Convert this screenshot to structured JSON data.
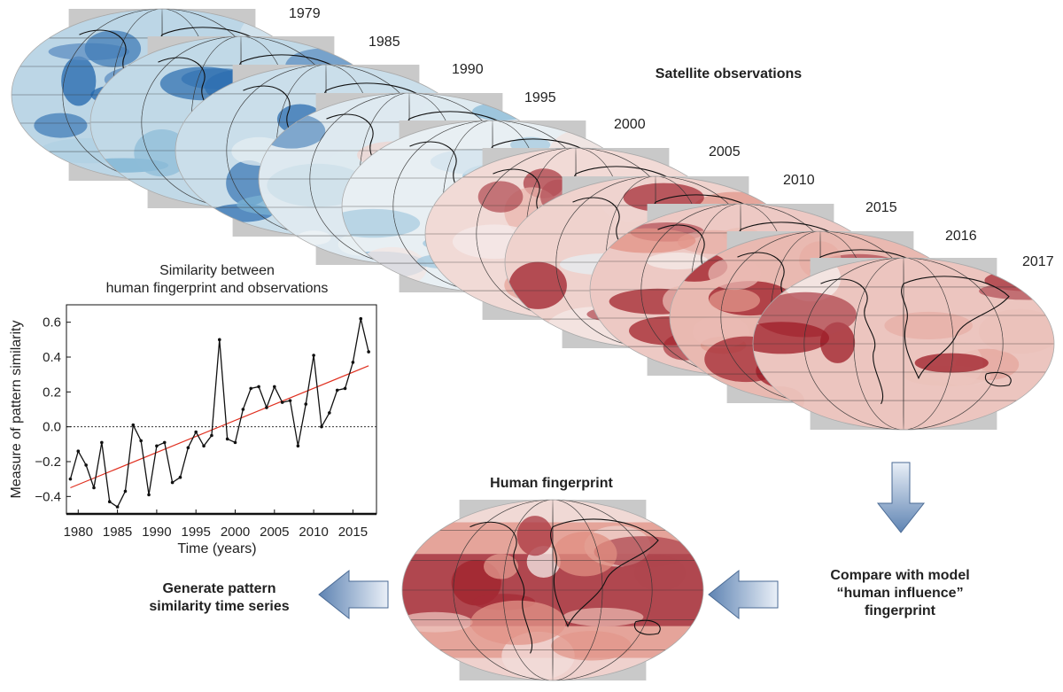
{
  "diagram": {
    "observations_label": "Satellite observations",
    "fingerprint_label": "Human fingerprint",
    "compare_label": [
      "Compare with model",
      "“human influence”",
      "fingerprint"
    ],
    "generate_label": [
      "Generate pattern",
      "similarity time series"
    ],
    "years": [
      "1979",
      "1985",
      "1990",
      "1995",
      "2000",
      "2005",
      "2010",
      "2015",
      "2016",
      "2017"
    ],
    "map_warmth": [
      -0.6,
      -0.55,
      -0.45,
      -0.25,
      -0.15,
      0.35,
      0.45,
      0.55,
      0.75,
      0.6
    ],
    "colors": {
      "warm": "#d6604d",
      "deep_warm": "#9e1b25",
      "cool": "#4393c3",
      "deep_cool": "#2166ac",
      "neutral": "#f7f7f7",
      "arrow": "#8aa6c8"
    }
  },
  "chart_data": {
    "type": "line",
    "title_lines": [
      "Similarity between",
      "human fingerprint and observations"
    ],
    "xlabel": "Time (years)",
    "ylabel": "Measure of pattern similarity",
    "xlim": [
      1978.5,
      2018
    ],
    "ylim": [
      -0.5,
      0.7
    ],
    "xticks": [
      1980,
      1985,
      1990,
      1995,
      2000,
      2005,
      2010,
      2015
    ],
    "yticks": [
      -0.4,
      -0.2,
      0.0,
      0.2,
      0.4,
      0.6
    ],
    "ytick_labels": [
      "−0.4",
      "−0.2",
      "0.0",
      "0.2",
      "0.4",
      "0.6"
    ],
    "zero_line": "dotted",
    "series": [
      {
        "kind": "observed",
        "color": "#111111",
        "x": [
          1979,
          1980,
          1981,
          1982,
          1983,
          1984,
          1985,
          1986,
          1987,
          1988,
          1989,
          1990,
          1991,
          1992,
          1993,
          1994,
          1995,
          1996,
          1997,
          1998,
          1999,
          2000,
          2001,
          2002,
          2003,
          2004,
          2005,
          2006,
          2007,
          2008,
          2009,
          2010,
          2011,
          2012,
          2013,
          2014,
          2015,
          2016,
          2017
        ],
        "y": [
          -0.3,
          -0.14,
          -0.22,
          -0.35,
          -0.09,
          -0.43,
          -0.46,
          -0.37,
          0.01,
          -0.08,
          -0.39,
          -0.11,
          -0.09,
          -0.32,
          -0.29,
          -0.12,
          -0.03,
          -0.11,
          -0.05,
          0.5,
          -0.07,
          -0.09,
          0.1,
          0.22,
          0.23,
          0.11,
          0.23,
          0.14,
          0.15,
          -0.11,
          0.13,
          0.41,
          0.0,
          0.08,
          0.21,
          0.22,
          0.37,
          0.62,
          0.43
        ]
      },
      {
        "kind": "trend",
        "color": "#e03020",
        "x": [
          1979,
          2017
        ],
        "y": [
          -0.35,
          0.35
        ]
      }
    ]
  }
}
